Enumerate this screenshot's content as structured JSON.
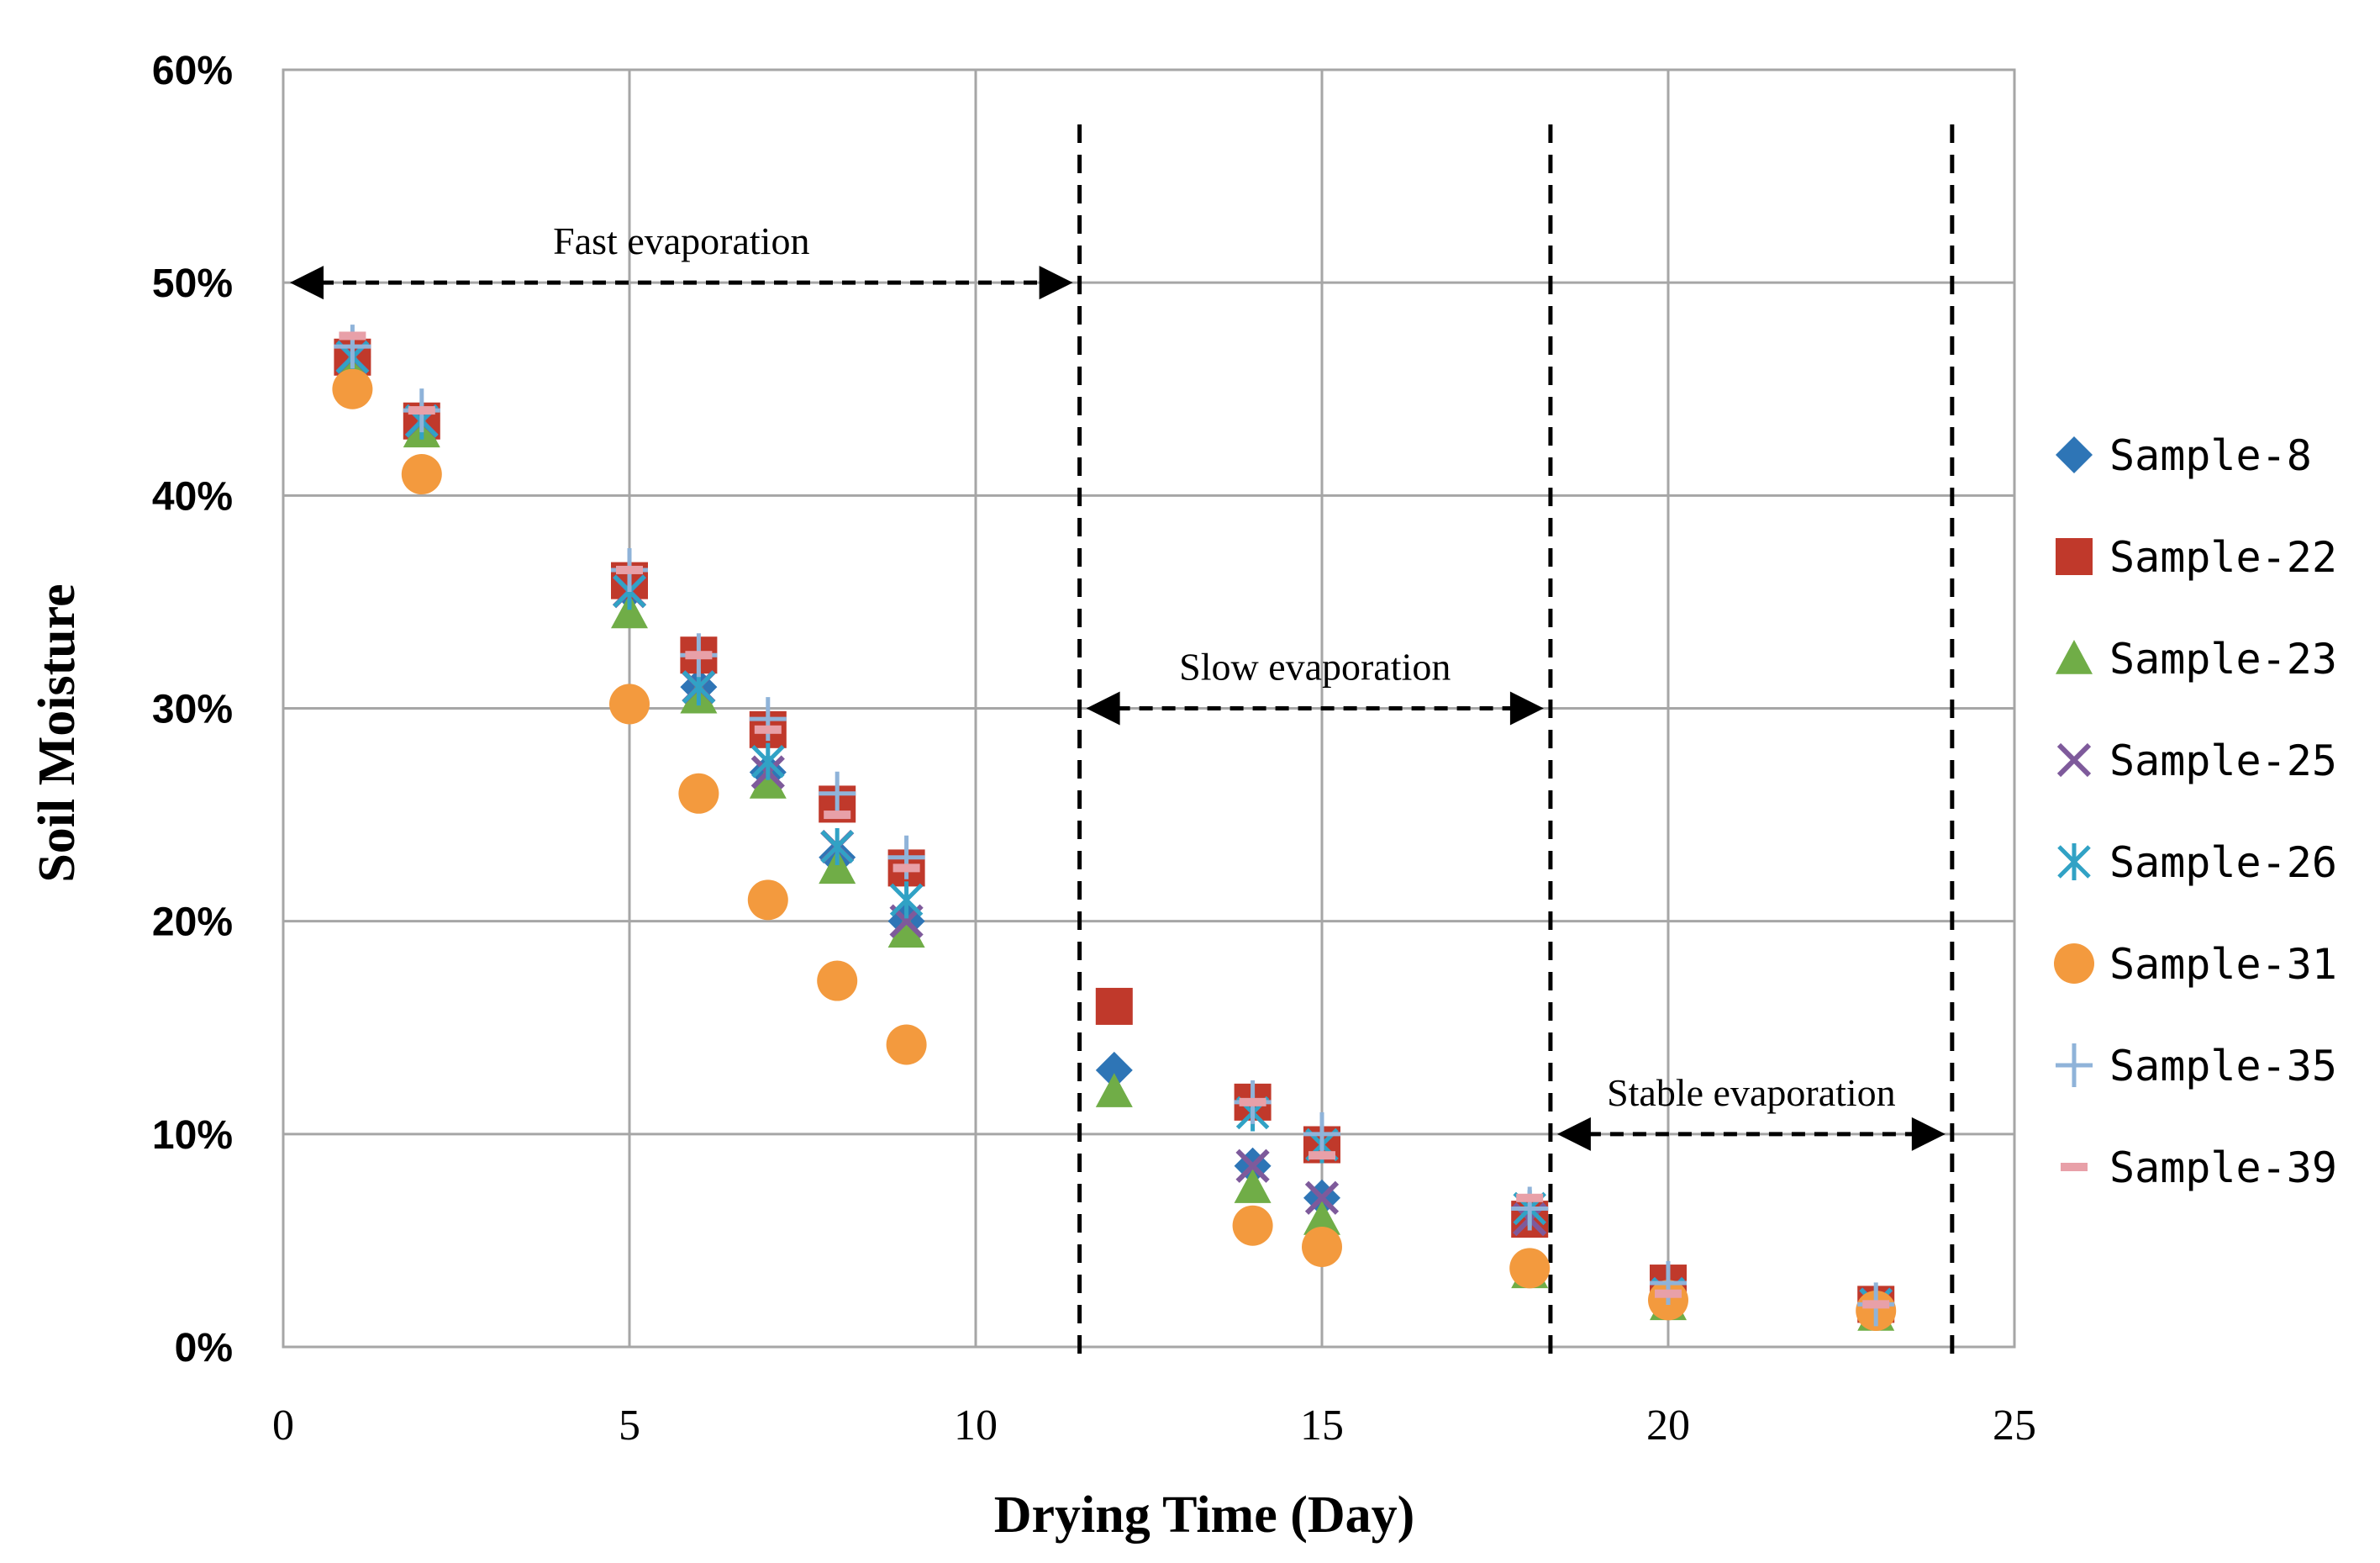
{
  "chart_data": {
    "type": "scatter",
    "title": "",
    "xlabel": "Drying Time (Day)",
    "ylabel": "Soil Moisture",
    "xlim": [
      0,
      25
    ],
    "ylim": [
      0,
      60
    ],
    "xticks": [
      0,
      5,
      10,
      15,
      20,
      25
    ],
    "yticks": [
      0,
      10,
      20,
      30,
      40,
      50,
      60
    ],
    "xtick_labels": [
      "0",
      "5",
      "10",
      "15",
      "20",
      "25"
    ],
    "ytick_labels": [
      "0%",
      "10%",
      "20%",
      "30%",
      "40%",
      "50%",
      "60%"
    ],
    "grid": true,
    "legend_position": "right",
    "series": [
      {
        "name": "Sample-8",
        "marker": "diamond",
        "color": "#2E75B6",
        "x": [
          1,
          2,
          5,
          6,
          7,
          8,
          9,
          12,
          14,
          15,
          18,
          20,
          23
        ],
        "y": [
          46.5,
          43.5,
          35.5,
          31,
          27,
          23,
          20,
          13,
          8.5,
          7,
          6,
          2.5,
          2
        ]
      },
      {
        "name": "Sample-22",
        "marker": "square",
        "color": "#C0392B",
        "x": [
          1,
          2,
          5,
          6,
          7,
          8,
          9,
          12,
          14,
          15,
          18,
          20,
          23
        ],
        "y": [
          46.5,
          43.5,
          36,
          32.5,
          29,
          25.5,
          22.5,
          16,
          11.5,
          9.5,
          6,
          3,
          2
        ]
      },
      {
        "name": "Sample-23",
        "marker": "triangle",
        "color": "#70AD47",
        "x": [
          1,
          2,
          5,
          6,
          7,
          8,
          9,
          12,
          14,
          15,
          18,
          20,
          23
        ],
        "y": [
          46,
          43,
          34.5,
          30.5,
          26.5,
          22.5,
          19.5,
          12,
          7.5,
          6,
          3.5,
          2,
          1.5
        ]
      },
      {
        "name": "Sample-25",
        "marker": "x",
        "color": "#7E5A9B",
        "x": [
          1,
          2,
          5,
          6,
          7,
          8,
          9,
          14,
          15,
          18,
          20,
          23
        ],
        "y": [
          46.5,
          43.5,
          35.5,
          31,
          27,
          23.5,
          20,
          8.5,
          7,
          6,
          2.5,
          2
        ]
      },
      {
        "name": "Sample-26",
        "marker": "asterisk",
        "color": "#31A2C5",
        "x": [
          1,
          2,
          5,
          6,
          7,
          8,
          9,
          14,
          15,
          18,
          20,
          23
        ],
        "y": [
          46.5,
          43.5,
          35.5,
          31,
          27.5,
          23.5,
          21,
          11,
          9.5,
          6.5,
          2.5,
          2
        ]
      },
      {
        "name": "Sample-31",
        "marker": "circle",
        "color": "#F39A3E",
        "x": [
          1,
          2,
          5,
          6,
          7,
          8,
          9,
          14,
          15,
          18,
          20,
          23
        ],
        "y": [
          45,
          41,
          30.2,
          26,
          21,
          17.2,
          14.2,
          5.7,
          4.7,
          3.7,
          2.2,
          1.7
        ]
      },
      {
        "name": "Sample-35",
        "marker": "plus",
        "color": "#8FB3D9",
        "x": [
          1,
          2,
          5,
          6,
          7,
          8,
          9,
          14,
          15,
          18,
          20,
          23
        ],
        "y": [
          47,
          44,
          36.5,
          32.5,
          29.5,
          26,
          23,
          11.5,
          10,
          6.5,
          3,
          2
        ]
      },
      {
        "name": "Sample-39",
        "marker": "dash",
        "color": "#E8A0A8",
        "x": [
          1,
          2,
          5,
          6,
          7,
          8,
          9,
          14,
          15,
          18,
          20,
          23
        ],
        "y": [
          47.5,
          44,
          36.5,
          32.5,
          29,
          25,
          22.5,
          11.5,
          9,
          7,
          2.5,
          2
        ]
      }
    ],
    "annotations": [
      {
        "text": "Fast evaporation",
        "x_from": 0,
        "x_to": 11.5,
        "y": 50
      },
      {
        "text": "Slow evaporation",
        "x_from": 11.5,
        "x_to": 18.3,
        "y": 30
      },
      {
        "text": "Stable evaporation",
        "x_from": 18.3,
        "x_to": 24.1,
        "y": 10
      }
    ],
    "phase_boundaries": [
      11.5,
      18.3,
      24.1
    ]
  }
}
